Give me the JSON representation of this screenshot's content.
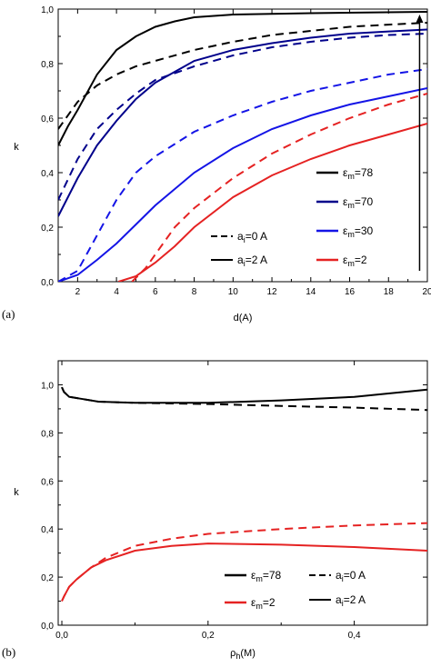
{
  "chart_data": [
    {
      "panel_label": "(a)",
      "type": "line",
      "xlabel": "d(A)",
      "ylabel": "k",
      "xlim": [
        1,
        20
      ],
      "ylim": [
        0,
        1
      ],
      "xticks": [
        2,
        4,
        6,
        8,
        10,
        12,
        14,
        16,
        18,
        20
      ],
      "yticks": [
        0,
        0.2,
        0.4,
        0.6,
        0.8,
        1.0
      ],
      "xtick_labels": [
        "2",
        "4",
        "6",
        "8",
        "10",
        "12",
        "14",
        "16",
        "18",
        "20"
      ],
      "ytick_labels": [
        "0,0",
        "0,2",
        "0,4",
        "0,6",
        "0,8",
        "1,0"
      ],
      "grid": false,
      "arrow": {
        "x": 19.6,
        "y_from": 0.04,
        "y_to": 0.98
      },
      "legend_colors": [
        {
          "label": "ε",
          "subscript": "m",
          "suffix": "=78",
          "color": "#000000"
        },
        {
          "label": "ε",
          "subscript": "m",
          "suffix": "=70",
          "color": "#00008b"
        },
        {
          "label": "ε",
          "subscript": "m",
          "suffix": "=30",
          "color": "#1414e6"
        },
        {
          "label": "ε",
          "subscript": "m",
          "suffix": "=2",
          "color": "#e52222"
        }
      ],
      "legend_styles": [
        {
          "label": "a",
          "subscript": "i",
          "suffix": "=0 A",
          "dash": "dashed"
        },
        {
          "label": "a",
          "subscript": "i",
          "suffix": "=2 A",
          "dash": "solid"
        }
      ],
      "series": [
        {
          "color": "#000000",
          "dash": "solid",
          "points": [
            [
              1,
              0.5
            ],
            [
              1.5,
              0.57
            ],
            [
              2,
              0.63
            ],
            [
              3,
              0.76
            ],
            [
              4,
              0.85
            ],
            [
              5,
              0.9
            ],
            [
              6,
              0.935
            ],
            [
              7,
              0.955
            ],
            [
              8,
              0.97
            ],
            [
              10,
              0.98
            ],
            [
              14,
              0.985
            ],
            [
              20,
              0.99
            ]
          ]
        },
        {
          "color": "#000000",
          "dash": "dashed",
          "points": [
            [
              1,
              0.56
            ],
            [
              2,
              0.66
            ],
            [
              3,
              0.72
            ],
            [
              4,
              0.76
            ],
            [
              5,
              0.79
            ],
            [
              6,
              0.81
            ],
            [
              8,
              0.85
            ],
            [
              10,
              0.88
            ],
            [
              12,
              0.905
            ],
            [
              14,
              0.92
            ],
            [
              16,
              0.935
            ],
            [
              18,
              0.943
            ],
            [
              20,
              0.95
            ]
          ]
        },
        {
          "color": "#00008b",
          "dash": "solid",
          "points": [
            [
              1,
              0.24
            ],
            [
              2,
              0.38
            ],
            [
              3,
              0.5
            ],
            [
              4,
              0.59
            ],
            [
              5,
              0.67
            ],
            [
              6,
              0.73
            ],
            [
              8,
              0.81
            ],
            [
              10,
              0.85
            ],
            [
              12,
              0.875
            ],
            [
              14,
              0.895
            ],
            [
              16,
              0.91
            ],
            [
              18,
              0.918
            ],
            [
              20,
              0.925
            ]
          ]
        },
        {
          "color": "#00008b",
          "dash": "dashed",
          "points": [
            [
              1,
              0.3
            ],
            [
              2,
              0.45
            ],
            [
              3,
              0.56
            ],
            [
              4,
              0.63
            ],
            [
              5,
              0.69
            ],
            [
              6,
              0.74
            ],
            [
              8,
              0.79
            ],
            [
              10,
              0.83
            ],
            [
              12,
              0.86
            ],
            [
              14,
              0.88
            ],
            [
              16,
              0.895
            ],
            [
              18,
              0.905
            ],
            [
              20,
              0.91
            ]
          ]
        },
        {
          "color": "#1414e6",
          "dash": "solid",
          "points": [
            [
              1,
              0
            ],
            [
              2,
              0.025
            ],
            [
              3,
              0.08
            ],
            [
              4,
              0.14
            ],
            [
              5,
              0.21
            ],
            [
              6,
              0.28
            ],
            [
              8,
              0.4
            ],
            [
              10,
              0.49
            ],
            [
              12,
              0.56
            ],
            [
              14,
              0.61
            ],
            [
              16,
              0.65
            ],
            [
              18,
              0.68
            ],
            [
              20,
              0.71
            ]
          ]
        },
        {
          "color": "#1414e6",
          "dash": "dashed",
          "points": [
            [
              1,
              0
            ],
            [
              2,
              0.04
            ],
            [
              3,
              0.17
            ],
            [
              4,
              0.3
            ],
            [
              5,
              0.4
            ],
            [
              6,
              0.46
            ],
            [
              8,
              0.55
            ],
            [
              10,
              0.61
            ],
            [
              12,
              0.66
            ],
            [
              14,
              0.7
            ],
            [
              16,
              0.73
            ],
            [
              18,
              0.76
            ],
            [
              20,
              0.78
            ]
          ]
        },
        {
          "color": "#e52222",
          "dash": "solid",
          "points": [
            [
              4.1,
              0
            ],
            [
              5,
              0.02
            ],
            [
              6,
              0.07
            ],
            [
              7,
              0.13
            ],
            [
              8,
              0.2
            ],
            [
              10,
              0.31
            ],
            [
              12,
              0.39
            ],
            [
              14,
              0.45
            ],
            [
              16,
              0.5
            ],
            [
              18,
              0.54
            ],
            [
              20,
              0.58
            ]
          ]
        },
        {
          "color": "#e52222",
          "dash": "dashed",
          "points": [
            [
              4.8,
              0
            ],
            [
              5.5,
              0.05
            ],
            [
              6,
              0.1
            ],
            [
              7,
              0.2
            ],
            [
              8,
              0.27
            ],
            [
              10,
              0.38
            ],
            [
              12,
              0.47
            ],
            [
              14,
              0.54
            ],
            [
              16,
              0.6
            ],
            [
              18,
              0.65
            ],
            [
              20,
              0.69
            ]
          ]
        }
      ]
    },
    {
      "panel_label": "(b)",
      "type": "line",
      "xlabel": "ρ",
      "xlabel_sub": "h",
      "xlabel_suffix": "(M)",
      "ylabel": "k",
      "xlim": [
        -0.005,
        0.5
      ],
      "ylim": [
        0,
        1.1
      ],
      "xticks": [
        0,
        0.2,
        0.4
      ],
      "yticks": [
        0,
        0.2,
        0.4,
        0.6,
        0.8,
        1.0
      ],
      "xtick_labels": [
        "0,0",
        "0,2",
        "0,4"
      ],
      "ytick_labels": [
        "0,0",
        "0,2",
        "0,4",
        "0,6",
        "0,8",
        "1,0"
      ],
      "grid": false,
      "legend_colors": [
        {
          "label": "ε",
          "subscript": "m",
          "suffix": "=78",
          "color": "#000000"
        },
        {
          "label": "ε",
          "subscript": "m",
          "suffix": "=2",
          "color": "#e52222"
        }
      ],
      "legend_styles": [
        {
          "label": "a",
          "subscript": "i",
          "suffix": "=0 A",
          "dash": "dashed"
        },
        {
          "label": "a",
          "subscript": "i",
          "suffix": "=2 A",
          "dash": "solid"
        }
      ],
      "series": [
        {
          "color": "#000000",
          "dash": "solid",
          "points": [
            [
              0,
              0.99
            ],
            [
              0.003,
              0.97
            ],
            [
              0.01,
              0.95
            ],
            [
              0.03,
              0.94
            ],
            [
              0.05,
              0.93
            ],
            [
              0.1,
              0.925
            ],
            [
              0.2,
              0.925
            ],
            [
              0.3,
              0.935
            ],
            [
              0.4,
              0.95
            ],
            [
              0.5,
              0.98
            ]
          ]
        },
        {
          "color": "#000000",
          "dash": "dashed",
          "points": [
            [
              0,
              0.99
            ],
            [
              0.003,
              0.97
            ],
            [
              0.01,
              0.95
            ],
            [
              0.03,
              0.94
            ],
            [
              0.05,
              0.93
            ],
            [
              0.1,
              0.925
            ],
            [
              0.2,
              0.92
            ],
            [
              0.3,
              0.912
            ],
            [
              0.4,
              0.905
            ],
            [
              0.5,
              0.895
            ]
          ]
        },
        {
          "color": "#e52222",
          "dash": "solid",
          "points": [
            [
              0,
              0.1
            ],
            [
              0.003,
              0.12
            ],
            [
              0.01,
              0.16
            ],
            [
              0.02,
              0.19
            ],
            [
              0.04,
              0.24
            ],
            [
              0.06,
              0.27
            ],
            [
              0.1,
              0.31
            ],
            [
              0.15,
              0.33
            ],
            [
              0.2,
              0.34
            ],
            [
              0.3,
              0.335
            ],
            [
              0.4,
              0.325
            ],
            [
              0.5,
              0.31
            ]
          ]
        },
        {
          "color": "#e52222",
          "dash": "dashed",
          "points": [
            [
              0,
              0.1
            ],
            [
              0.003,
              0.12
            ],
            [
              0.01,
              0.16
            ],
            [
              0.02,
              0.19
            ],
            [
              0.04,
              0.24
            ],
            [
              0.06,
              0.28
            ],
            [
              0.1,
              0.33
            ],
            [
              0.15,
              0.36
            ],
            [
              0.2,
              0.38
            ],
            [
              0.3,
              0.4
            ],
            [
              0.4,
              0.415
            ],
            [
              0.5,
              0.425
            ]
          ]
        }
      ]
    }
  ]
}
